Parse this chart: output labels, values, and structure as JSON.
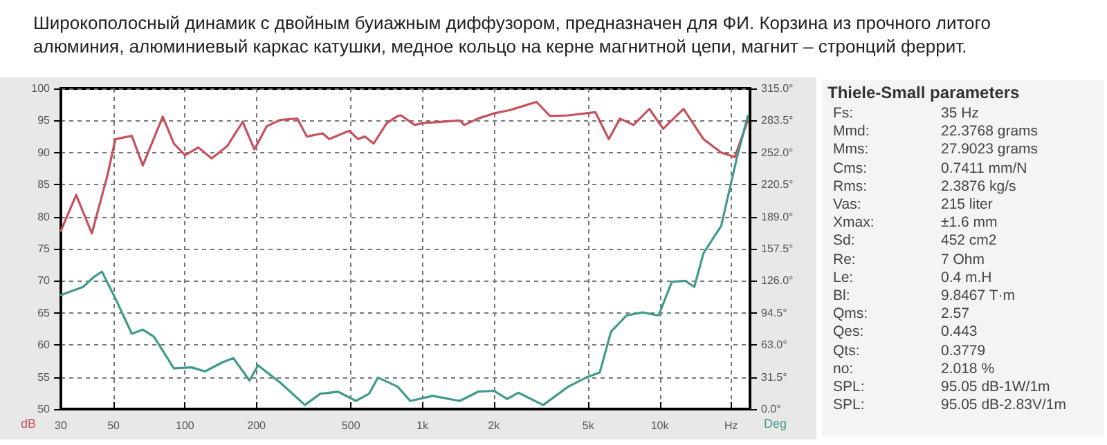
{
  "chart_data": [
    {
      "type": "line",
      "title": "Широкополосный динамик с двойным буиажным диффузором, предназначен для ФИ. Корзина из прочного литого алюминия, алюминиевый каркас катушки, медное кольцо на керне магнитной цепи, магнит – стронций феррит.",
      "ylabel": "dB",
      "y2label": "Deg",
      "log": "x",
      "xlim": [
        30,
        24000
      ],
      "xticks": [
        30,
        50,
        100,
        200,
        500,
        {
          "value": 1000,
          "label": "1k"
        },
        {
          "value": 2000,
          "label": "2k"
        },
        {
          "value": 5000,
          "label": "5k"
        },
        {
          "value": 10000,
          "label": "10k"
        },
        {
          "value": 20000,
          "label": "Hz"
        }
      ],
      "ylim": [
        50,
        100
      ],
      "yticks": [
        50,
        55,
        60,
        65,
        70,
        75,
        80,
        85,
        90,
        95,
        100
      ],
      "y2lim": [
        0,
        315
      ],
      "y2ticks": [
        {
          "value": 0,
          "label": "0.0°"
        },
        {
          "value": 31.5,
          "label": "31.5°"
        },
        {
          "value": 63,
          "label": "63.0°"
        },
        {
          "value": 94.5,
          "label": "94.5°"
        },
        {
          "value": 126,
          "label": "126.0°"
        },
        {
          "value": 157.5,
          "label": "157.5°"
        },
        {
          "value": 189,
          "label": "189.0°"
        },
        {
          "value": 220.5,
          "label": "220.5°"
        },
        {
          "value": 252,
          "label": "252.0°"
        },
        {
          "value": 283.5,
          "label": "283.5°"
        },
        {
          "value": 315,
          "label": "315.0°"
        }
      ],
      "grid": true,
      "marker": "none",
      "line_style": "solid",
      "series": [
        {
          "color": "#c8505a",
          "x": [
            30,
            34.8,
            40.5,
            47.1,
            50.9,
            59.7,
            66.4,
            80.6,
            89.8,
            100,
            113.8,
            129.5,
            150.5,
            175,
            196,
            221,
            252,
            297,
            326,
            380,
            405,
            492,
            536,
            572,
            623,
            708,
            787,
            814,
            928,
            1000,
            1438,
            1502,
            1714,
            1997,
            2327,
            3026,
            3450,
            4113,
            5352,
            6100,
            6800,
            7750,
            9050,
            10330,
            12600,
            15280,
            18150,
            20700,
            23500
          ],
          "values": [
            77.8,
            83.4,
            77.4,
            86.4,
            92.1,
            92.6,
            88,
            95.6,
            91.4,
            89.6,
            90.8,
            89.1,
            91,
            94.8,
            90.5,
            94.1,
            95.1,
            95.3,
            92.5,
            93,
            92.1,
            93.4,
            92.1,
            92.5,
            91.4,
            94.6,
            95.7,
            95.8,
            94.3,
            94.6,
            95,
            94.3,
            95.3,
            96.1,
            96.6,
            97.9,
            95.7,
            95.8,
            96.3,
            92.1,
            95.3,
            94.3,
            96.8,
            93.7,
            96.8,
            92.1,
            90,
            89.3,
            95
          ]
        },
        {
          "color": "#3f9a8c",
          "axis": "y2",
          "x": [
            30,
            37.2,
            41.4,
            44.7,
            51.3,
            59.7,
            66.4,
            74,
            89.8,
            106.7,
            121.4,
            144,
            160,
            187,
            203,
            252,
            320,
            371,
            442,
            525,
            596,
            650,
            787,
            889,
            1106,
            1438,
            1714,
            1997,
            2277,
            2540,
            3230,
            4113,
            4900,
            5590,
            6230,
            7250,
            8460,
            9890,
            11250,
            12830,
            13980,
            15280,
            18150,
            21140,
            23500
          ],
          "values": [
            112,
            120,
            130,
            135,
            107,
            74,
            78,
            71,
            40,
            41,
            37,
            46,
            50,
            28,
            43,
            26,
            4,
            15,
            17,
            8,
            15,
            31,
            22,
            8,
            13,
            8,
            17,
            18,
            10,
            16,
            4,
            22,
            31,
            36,
            76,
            92,
            95,
            92,
            125,
            126,
            120,
            153,
            180,
            247,
            288
          ]
        }
      ]
    },
    {
      "type": "other",
      "title": "Thiele-Small parameters",
      "annotations": [
        "Fs:",
        "35 Hz",
        "Mmd:",
        "22.3768 grams",
        "Mms:",
        "27.9023 grams",
        "Cms:",
        "0.7411 mm/N",
        "Rms:",
        "2.3876 kg/s",
        "Vas:",
        "215 liter",
        "Xmax:",
        "±1.6 mm",
        "Sd:",
        "452 cm2",
        "Re:",
        "7 Ohm",
        "Le:",
        "0.4 m.H",
        "Bl:",
        "9.8467 T·m",
        "Qms:",
        "2.57",
        "Qes:",
        "0.443",
        "Qts:",
        "0.3779",
        "no:",
        "2.018 %",
        "SPL:",
        "95.05 dB-1W/1m",
        "SPL:",
        "95.05 dB-2.83V/1m"
      ]
    }
  ]
}
